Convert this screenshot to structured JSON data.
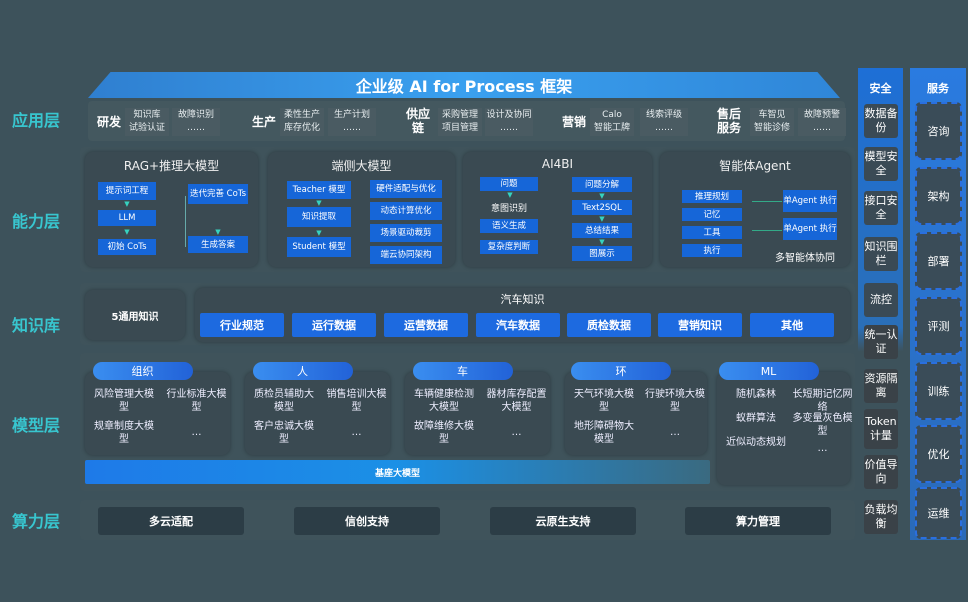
{
  "title": "企业级 AI for Process 框架",
  "layers": [
    "应用层",
    "能力层",
    "知识库",
    "模型层",
    "算力层"
  ],
  "app": [
    {
      "name": "研发",
      "items": [
        "知识库",
        "试验认证",
        "故障识别",
        "……"
      ]
    },
    {
      "name": "生产",
      "items": [
        "柔性生产",
        "库存优化",
        "生产计划",
        "……"
      ]
    },
    {
      "name": "供应链",
      "items": [
        "采购管理",
        "项目管理",
        "设计及协同",
        "……"
      ]
    },
    {
      "name": "营销",
      "items": [
        "Calo",
        "智能工牌",
        "线索评级",
        "……"
      ]
    },
    {
      "name": "售后服务",
      "items": [
        "车智见",
        "智能诊修",
        "故障预警",
        "……"
      ]
    }
  ],
  "ability": {
    "rag": {
      "title": "RAG+推理大模型",
      "items": [
        "提示词工程",
        "LLM",
        "初始 CoTs",
        "迭代完善 CoTs",
        "生成答案"
      ]
    },
    "edge": {
      "title": "端侧大模型",
      "left": [
        "Teacher 模型",
        "知识提取",
        "Student 模型"
      ],
      "right": [
        "硬件适配与优化",
        "动态计算优化",
        "场景驱动裁剪",
        "端云协同架构"
      ]
    },
    "ai4bi": {
      "title": "AI4BI",
      "left": [
        "问题",
        "意图识别",
        "语义生成",
        "复杂度判断"
      ],
      "right": [
        "问题分解",
        "Text2SQL",
        "总结结果",
        "图展示"
      ]
    },
    "agent": {
      "title": "智能体Agent",
      "left": [
        "推理规划",
        "记忆",
        "工具",
        "执行"
      ],
      "right": [
        "单Agent 执行",
        "单Agent 执行"
      ],
      "footer": "多智能体协同"
    }
  },
  "knowledge": {
    "general": "5通用知识",
    "auto_title": "汽车知识",
    "items": [
      "行业规范",
      "运行数据",
      "运营数据",
      "汽车数据",
      "质检数据",
      "营销知识",
      "其他"
    ]
  },
  "models": [
    {
      "name": "组织",
      "items": [
        "风险管理大模型",
        "行业标准大模型",
        "规章制度大模型",
        "…"
      ]
    },
    {
      "name": "人",
      "items": [
        "质检员辅助大模型",
        "销售培训大模型",
        "客户忠诚大模型",
        "…"
      ]
    },
    {
      "name": "车",
      "items": [
        "车辆健康检测大模型",
        "器材库存配置大模型",
        "故障维修大模型",
        "…"
      ]
    },
    {
      "name": "环",
      "items": [
        "天气环境大模型",
        "行驶环境大模型",
        "地形障碍物大模型",
        "…"
      ]
    },
    {
      "name": "ML",
      "items": [
        "随机森林",
        "长短期记忆网络",
        "蚁群算法",
        "多变量灰色模型",
        "近似动态规划",
        "…"
      ]
    }
  ],
  "base_model": "基座大模型",
  "compute": [
    "多云适配",
    "信创支持",
    "云原生支持",
    "算力管理"
  ],
  "security": {
    "title": "安全",
    "items": [
      "数据备份",
      "模型安全",
      "接口安全",
      "知识围栏",
      "流控",
      "统一认证",
      "资源隔离",
      "Token计量",
      "价值导向",
      "负载均衡"
    ]
  },
  "service": {
    "title": "服务",
    "items": [
      "咨询",
      "架构",
      "部署",
      "评测",
      "训练",
      "优化",
      "运维"
    ]
  }
}
